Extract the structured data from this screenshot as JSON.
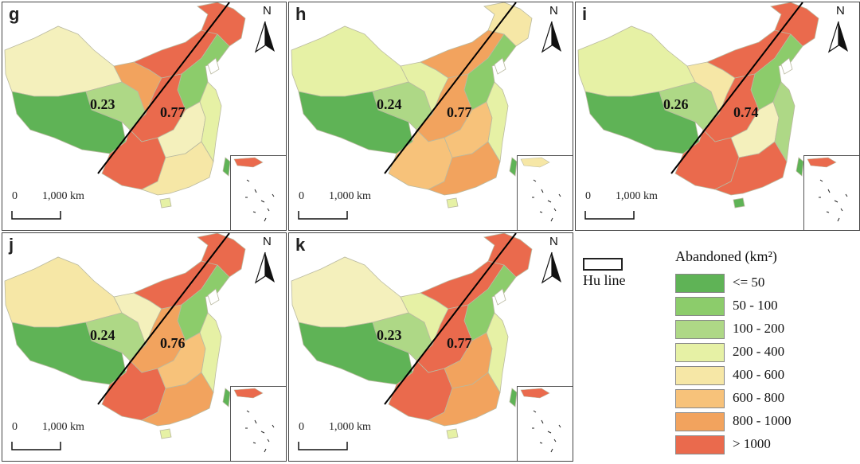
{
  "panels": [
    {
      "letter": "g",
      "west_ratio": "0.23",
      "east_ratio": "0.77",
      "fills": {
        "xinjiang": "#f4f0bc",
        "tibet": "#5fb356",
        "qinghai": "#aed886",
        "gansu": "#f2a35e",
        "inner_mongolia": "#ea6a4d",
        "northeast": "#ea6a4d",
        "north": "#8ccc6b",
        "sichuan": "#ea6a4d",
        "yunnan": "#ea6a4d",
        "central": "#f4f0bc",
        "south": "#f6e7a6",
        "east": "#e6f1a5",
        "taiwan": "#5fb356",
        "hainan": "#e6f1a5"
      }
    },
    {
      "letter": "h",
      "west_ratio": "0.24",
      "east_ratio": "0.77",
      "fills": {
        "xinjiang": "#e6f1a5",
        "tibet": "#5fb356",
        "qinghai": "#aed886",
        "gansu": "#e6f1a5",
        "inner_mongolia": "#f2a35e",
        "northeast": "#f6e7a6",
        "north": "#8ccc6b",
        "sichuan": "#f2a35e",
        "yunnan": "#f7c27a",
        "central": "#f7c27a",
        "south": "#f2a35e",
        "east": "#e6f1a5",
        "taiwan": "#5fb356",
        "hainan": "#e6f1a5"
      }
    },
    {
      "letter": "i",
      "west_ratio": "0.26",
      "east_ratio": "0.74",
      "fills": {
        "xinjiang": "#e6f1a5",
        "tibet": "#5fb356",
        "qinghai": "#aed886",
        "gansu": "#f6e7a6",
        "inner_mongolia": "#ea6a4d",
        "northeast": "#ea6a4d",
        "north": "#8ccc6b",
        "sichuan": "#ea6a4d",
        "yunnan": "#ea6a4d",
        "central": "#f4f0bc",
        "south": "#ea6a4d",
        "east": "#aed886",
        "taiwan": "#5fb356",
        "hainan": "#5fb356"
      }
    },
    {
      "letter": "j",
      "west_ratio": "0.24",
      "east_ratio": "0.76",
      "fills": {
        "xinjiang": "#f6e7a6",
        "tibet": "#5fb356",
        "qinghai": "#aed886",
        "gansu": "#f4f0bc",
        "inner_mongolia": "#ea6a4d",
        "northeast": "#ea6a4d",
        "north": "#8ccc6b",
        "sichuan": "#f2a35e",
        "yunnan": "#ea6a4d",
        "central": "#f7c27a",
        "south": "#f2a35e",
        "east": "#e6f1a5",
        "taiwan": "#5fb356",
        "hainan": "#e6f1a5"
      }
    },
    {
      "letter": "k",
      "west_ratio": "0.23",
      "east_ratio": "0.77",
      "fills": {
        "xinjiang": "#f4f0bc",
        "tibet": "#5fb356",
        "qinghai": "#aed886",
        "gansu": "#e6f1a5",
        "inner_mongolia": "#ea6a4d",
        "northeast": "#ea6a4d",
        "north": "#8ccc6b",
        "sichuan": "#ea6a4d",
        "yunnan": "#ea6a4d",
        "central": "#f2a35e",
        "south": "#f2a35e",
        "east": "#e6f1a5",
        "taiwan": "#5fb356",
        "hainan": "#e6f1a5"
      }
    }
  ],
  "scale_bar": {
    "zero": "0",
    "distance": "1,000 km"
  },
  "north_letter": "N",
  "hu_line_label": "Hu line",
  "legend": {
    "title": "Abandoned (km²)",
    "items": [
      {
        "label": "<= 50",
        "color": "#5fb356"
      },
      {
        "label": "50 - 100",
        "color": "#8ccc6b"
      },
      {
        "label": "100 - 200",
        "color": "#aed886"
      },
      {
        "label": "200 - 400",
        "color": "#e6f1a5"
      },
      {
        "label": "400 - 600",
        "color": "#f6e7a6"
      },
      {
        "label": "600 - 800",
        "color": "#f7c27a"
      },
      {
        "label": "800 - 1000",
        "color": "#f2a35e"
      },
      {
        "label": "> 1000",
        "color": "#ea6a4d"
      }
    ]
  }
}
